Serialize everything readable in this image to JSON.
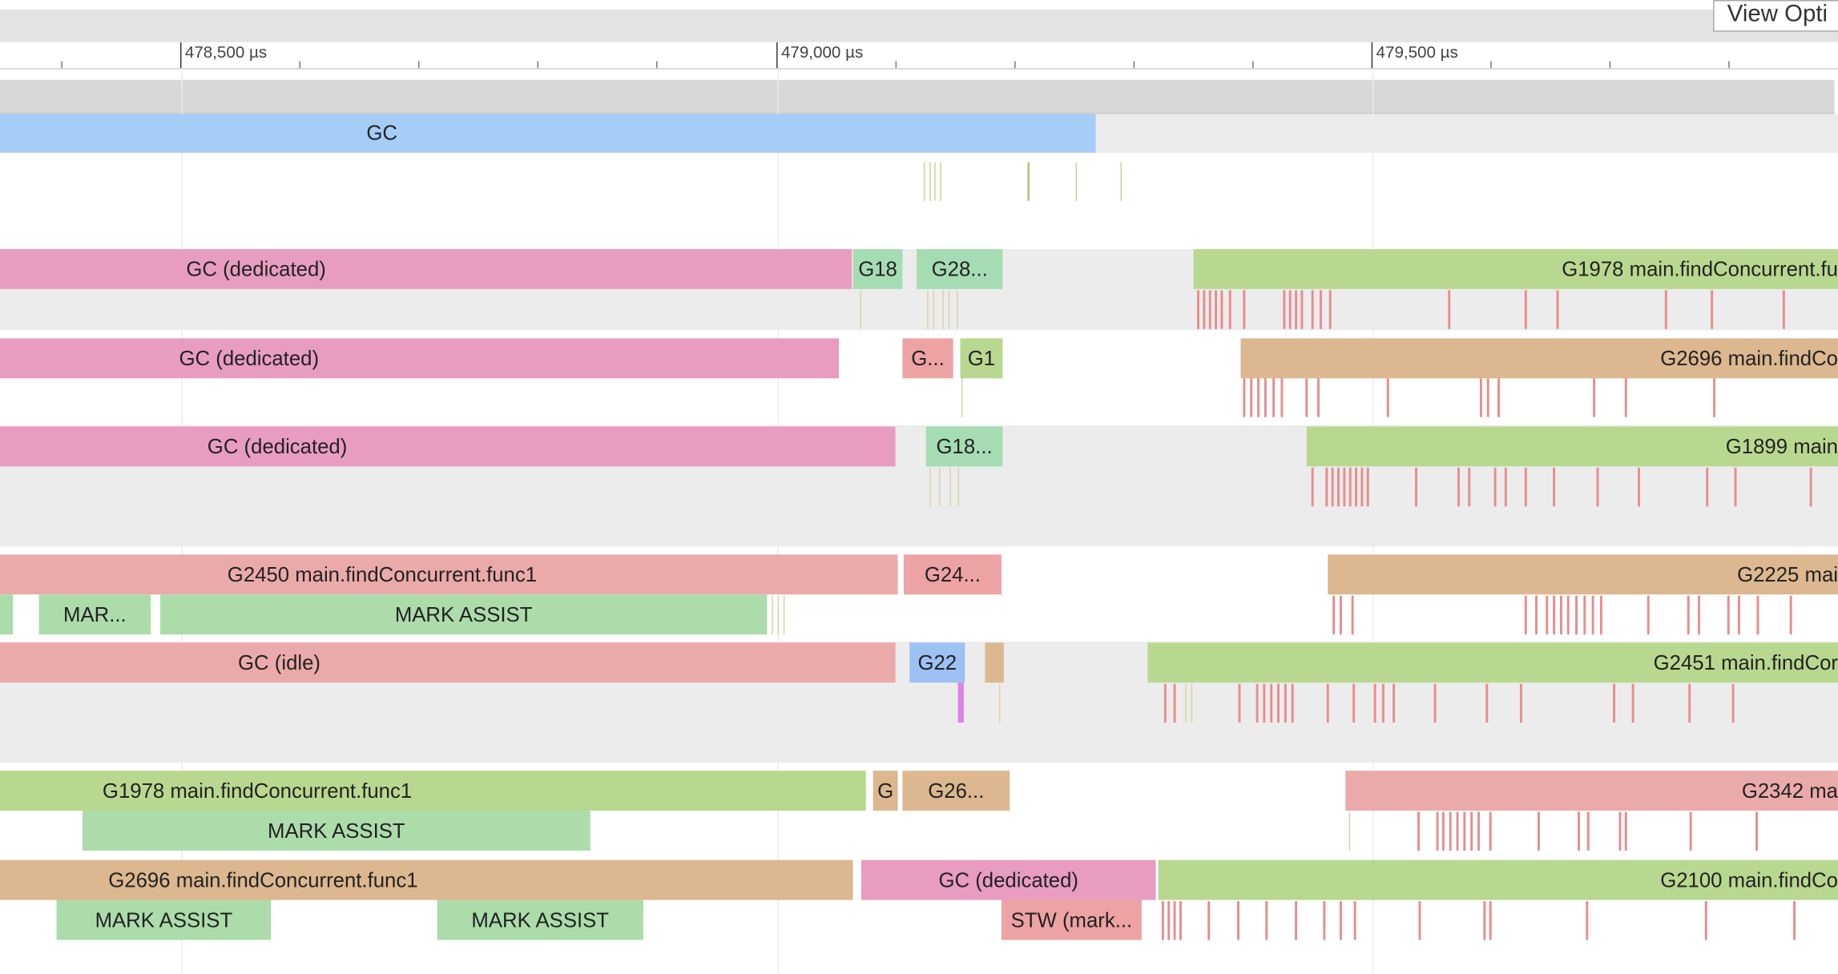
{
  "toolbar": {
    "view_options_label": "View Opti"
  },
  "ruler": {
    "labels": [
      {
        "text": "478,500 µs"
      },
      {
        "text": "479,000 µs"
      },
      {
        "text": "479,500 µs"
      }
    ]
  },
  "track": {
    "gc_label": "GC",
    "p0": {
      "a": "GC (dedicated)",
      "b": "G18",
      "c": "G28...",
      "d": "G1978 main.findConcurrent.fu"
    },
    "p1": {
      "a": "GC (dedicated)",
      "b": "G...",
      "c": "G1",
      "d": "G2696 main.findCo"
    },
    "p2": {
      "a": "GC (dedicated)",
      "b": "G18...",
      "d": "G1899 main"
    },
    "p3": {
      "a": "G2450 main.findConcurrent.func1",
      "b": "G24...",
      "d": "G2225 mai",
      "ma1": "MAR...",
      "ma2": "MARK ASSIST"
    },
    "p4": {
      "a": "GC (idle)",
      "b": "G22",
      "d": "G2451 main.findCor"
    },
    "p5": {
      "a": "G1978 main.findConcurrent.func1",
      "b": "G",
      "c": "G26...",
      "d": "G2342 ma",
      "ma1": "MARK ASSIST"
    },
    "p6": {
      "a": "G2696 main.findConcurrent.func1",
      "b": "GC (dedicated)",
      "d": "G2100 main.findCo",
      "ma1": "MARK ASSIST",
      "ma2": "MARK ASSIST",
      "stw": "STW (mark..."
    }
  },
  "colors": {
    "gc": "#a5cdf5",
    "dedicated": "#e89dc0",
    "goroutine_green": "#b9d88f",
    "goroutine_teal": "#a6dcb4",
    "goroutine_tan": "#dcb78f",
    "goroutine_red": "#ebaaaa",
    "goroutine_blue": "#9dc1f3",
    "mark_assist": "#acdcaa",
    "event_mark": "#e88d8d",
    "lane_shade": "#ececec"
  }
}
